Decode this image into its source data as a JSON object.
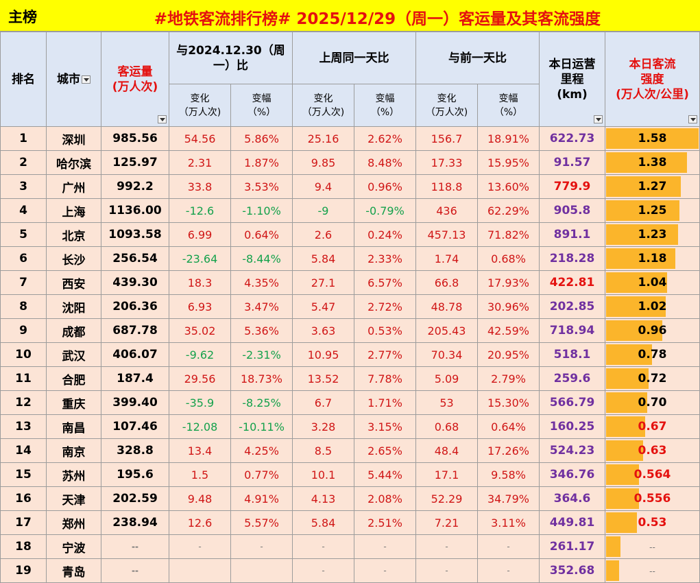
{
  "title": {
    "tag": "主榜",
    "main": "#地铁客流排行榜# 2025/12/29（周一）客运量及其客流强度"
  },
  "headers": {
    "rank": "排名",
    "city": "城市",
    "volume_line1": "客运量",
    "volume_line2": "(万人次)",
    "yoy_group_line1": "与2024.12.30（周",
    "yoy_group_line2": "一）比",
    "wow_group": "上周同一天比",
    "dod_group": "与前一天比",
    "change_line1": "变化",
    "change_line2": "（万人次)",
    "pct_line1": "变幅",
    "pct_line2": "（%）",
    "length_line1": "本日运营",
    "length_line2": "里程",
    "length_line3": "(km)",
    "density_line1": "本日客流",
    "density_line2": "强度",
    "density_line3": "(万人次/公里)"
  },
  "colors": {
    "title_bar": "#ffff00",
    "title_text": "#e4110f",
    "header_bg": "#dde6f4",
    "row_bg": "#fce4d6",
    "positive": "#d01616",
    "negative": "#14a14b",
    "length": "#7030a0",
    "bar": "#fbb52b"
  },
  "density_scale_max": 1.58,
  "rows": [
    {
      "rank": "1",
      "city": "深圳",
      "volume": "985.56",
      "yoy_change": "54.56",
      "yoy_pct": "5.86%",
      "wow_change": "25.16",
      "wow_pct": "2.62%",
      "dod_change": "156.7",
      "dod_pct": "18.91%",
      "length": "622.73",
      "density": "1.58",
      "density_value": 1.58
    },
    {
      "rank": "2",
      "city": "哈尔滨",
      "volume": "125.97",
      "yoy_change": "2.31",
      "yoy_pct": "1.87%",
      "wow_change": "9.85",
      "wow_pct": "8.48%",
      "dod_change": "17.33",
      "dod_pct": "15.95%",
      "length": "91.57",
      "density": "1.38",
      "density_value": 1.38
    },
    {
      "rank": "3",
      "city": "广州",
      "volume": "992.2",
      "yoy_change": "33.8",
      "yoy_pct": "3.53%",
      "wow_change": "9.4",
      "wow_pct": "0.96%",
      "dod_change": "118.8",
      "dod_pct": "13.60%",
      "length": "779.9",
      "length_hot": true,
      "density": "1.27",
      "density_value": 1.27
    },
    {
      "rank": "4",
      "city": "上海",
      "volume": "1136.00",
      "yoy_change": "-12.6",
      "yoy_pct": "-1.10%",
      "wow_change": "-9",
      "wow_pct": "-0.79%",
      "dod_change": "436",
      "dod_pct": "62.29%",
      "length": "905.8",
      "density": "1.25",
      "density_value": 1.25
    },
    {
      "rank": "5",
      "city": "北京",
      "volume": "1093.58",
      "yoy_change": "6.99",
      "yoy_pct": "0.64%",
      "wow_change": "2.6",
      "wow_pct": "0.24%",
      "dod_change": "457.13",
      "dod_pct": "71.82%",
      "length": "891.1",
      "density": "1.23",
      "density_value": 1.23
    },
    {
      "rank": "6",
      "city": "长沙",
      "volume": "256.54",
      "yoy_change": "-23.64",
      "yoy_pct": "-8.44%",
      "wow_change": "5.84",
      "wow_pct": "2.33%",
      "dod_change": "1.74",
      "dod_pct": "0.68%",
      "length": "218.28",
      "density": "1.18",
      "density_value": 1.18
    },
    {
      "rank": "7",
      "city": "西安",
      "volume": "439.30",
      "yoy_change": "18.3",
      "yoy_pct": "4.35%",
      "wow_change": "27.1",
      "wow_pct": "6.57%",
      "dod_change": "66.8",
      "dod_pct": "17.93%",
      "length": "422.81",
      "length_hot": true,
      "density": "1.04",
      "density_value": 1.04
    },
    {
      "rank": "8",
      "city": "沈阳",
      "volume": "206.36",
      "yoy_change": "6.93",
      "yoy_pct": "3.47%",
      "wow_change": "5.47",
      "wow_pct": "2.72%",
      "dod_change": "48.78",
      "dod_pct": "30.96%",
      "length": "202.85",
      "density": "1.02",
      "density_value": 1.02
    },
    {
      "rank": "9",
      "city": "成都",
      "volume": "687.78",
      "yoy_change": "35.02",
      "yoy_pct": "5.36%",
      "wow_change": "3.63",
      "wow_pct": "0.53%",
      "dod_change": "205.43",
      "dod_pct": "42.59%",
      "length": "718.94",
      "density": "0.96",
      "density_value": 0.96
    },
    {
      "rank": "10",
      "city": "武汉",
      "volume": "406.07",
      "yoy_change": "-9.62",
      "yoy_pct": "-2.31%",
      "wow_change": "10.95",
      "wow_pct": "2.77%",
      "dod_change": "70.34",
      "dod_pct": "20.95%",
      "length": "518.1",
      "density": "0.78",
      "density_value": 0.78
    },
    {
      "rank": "11",
      "city": "合肥",
      "volume": "187.4",
      "yoy_change": "29.56",
      "yoy_pct": "18.73%",
      "wow_change": "13.52",
      "wow_pct": "7.78%",
      "dod_change": "5.09",
      "dod_pct": "2.79%",
      "length": "259.6",
      "density": "0.72",
      "density_value": 0.72
    },
    {
      "rank": "12",
      "city": "重庆",
      "volume": "399.40",
      "yoy_change": "-35.9",
      "yoy_pct": "-8.25%",
      "wow_change": "6.7",
      "wow_pct": "1.71%",
      "dod_change": "53",
      "dod_pct": "15.30%",
      "length": "566.79",
      "density": "0.70",
      "density_value": 0.7
    },
    {
      "rank": "13",
      "city": "南昌",
      "volume": "107.46",
      "yoy_change": "-12.08",
      "yoy_pct": "-10.11%",
      "wow_change": "3.28",
      "wow_pct": "3.15%",
      "dod_change": "0.68",
      "dod_pct": "0.64%",
      "length": "160.25",
      "density": "0.67",
      "density_value": 0.67,
      "density_hot": true
    },
    {
      "rank": "14",
      "city": "南京",
      "volume": "328.8",
      "yoy_change": "13.4",
      "yoy_pct": "4.25%",
      "wow_change": "8.5",
      "wow_pct": "2.65%",
      "dod_change": "48.4",
      "dod_pct": "17.26%",
      "length": "524.23",
      "density": "0.63",
      "density_value": 0.63,
      "density_hot": true
    },
    {
      "rank": "15",
      "city": "苏州",
      "volume": "195.6",
      "yoy_change": "1.5",
      "yoy_pct": "0.77%",
      "wow_change": "10.1",
      "wow_pct": "5.44%",
      "dod_change": "17.1",
      "dod_pct": "9.58%",
      "length": "346.76",
      "density": "0.564",
      "density_value": 0.564,
      "density_hot": true
    },
    {
      "rank": "16",
      "city": "天津",
      "volume": "202.59",
      "yoy_change": "9.48",
      "yoy_pct": "4.91%",
      "wow_change": "4.13",
      "wow_pct": "2.08%",
      "dod_change": "52.29",
      "dod_pct": "34.79%",
      "length": "364.6",
      "density": "0.556",
      "density_value": 0.556,
      "density_hot": true
    },
    {
      "rank": "17",
      "city": "郑州",
      "volume": "238.94",
      "yoy_change": "12.6",
      "yoy_pct": "5.57%",
      "wow_change": "5.84",
      "wow_pct": "2.51%",
      "dod_change": "7.21",
      "dod_pct": "3.11%",
      "length": "449.81",
      "density": "0.53",
      "density_value": 0.53,
      "density_hot": true
    },
    {
      "rank": "18",
      "city": "宁波",
      "volume": "--",
      "yoy_change": "-",
      "yoy_pct": "-",
      "wow_change": "-",
      "wow_pct": "-",
      "dod_change": "-",
      "dod_pct": "-",
      "length": "261.17",
      "density": "--",
      "density_value": 0.25
    },
    {
      "rank": "19",
      "city": "青岛",
      "volume": "--",
      "yoy_change": "",
      "yoy_pct": "",
      "wow_change": "-",
      "wow_pct": "-",
      "dod_change": "-",
      "dod_pct": "-",
      "length": "352.68",
      "density": "--",
      "density_value": 0.22
    }
  ]
}
